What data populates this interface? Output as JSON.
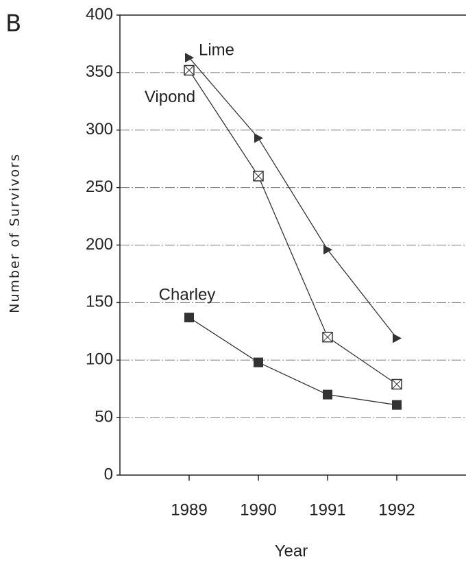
{
  "panel_label": "B",
  "chart_data": {
    "type": "line",
    "x_label": "Year",
    "y_label": "Number of Survivors",
    "x": [
      1989,
      1990,
      1991,
      1992
    ],
    "xlim": [
      1988,
      1993
    ],
    "xticks": [
      1989,
      1990,
      1991,
      1992
    ],
    "ylim": [
      0,
      400
    ],
    "yticks": [
      0,
      50,
      100,
      150,
      200,
      250,
      300,
      350,
      400
    ],
    "grid": true,
    "series": [
      {
        "name": "Lime",
        "color": "#333333",
        "marker": "triangle",
        "values": [
          363,
          293,
          196,
          119
        ]
      },
      {
        "name": "Vipond",
        "color": "#333333",
        "marker": "square-x",
        "values": [
          352,
          260,
          120,
          79
        ]
      },
      {
        "name": "Charley",
        "color": "#333333",
        "marker": "square",
        "values": [
          137,
          98,
          70,
          61
        ]
      }
    ]
  }
}
